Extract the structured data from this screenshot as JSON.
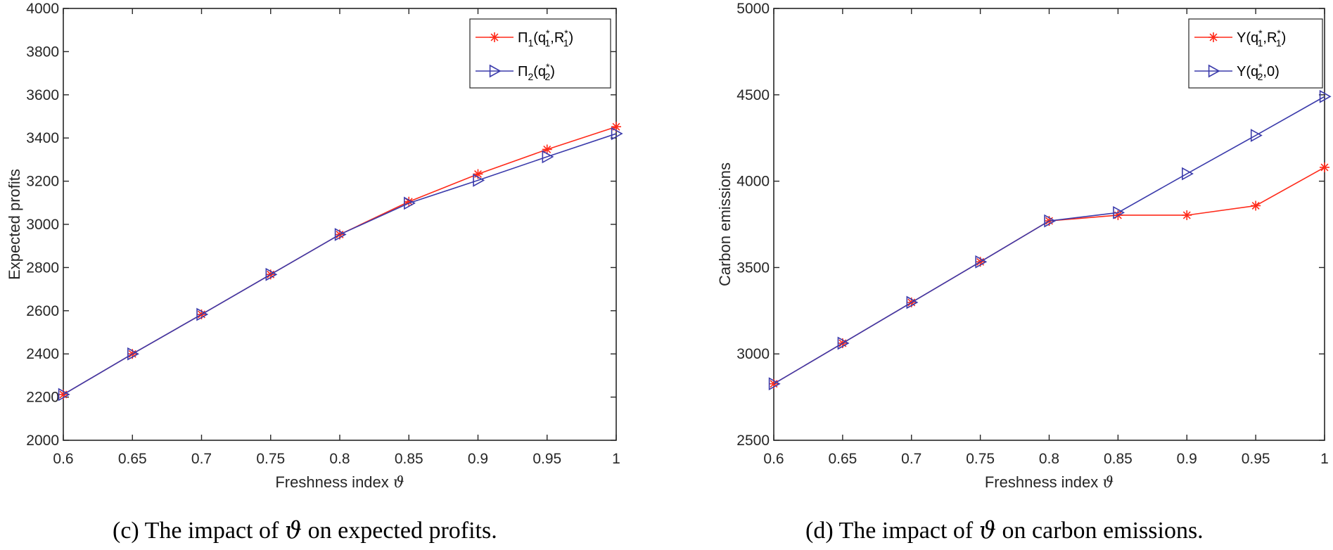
{
  "chart_data": [
    {
      "type": "line",
      "id": "c",
      "caption_prefix": "(c)",
      "caption_pre": "The impact of",
      "caption_symbol": "ϑ",
      "caption_post": "on expected profits.",
      "xlabel_text": "Freshness index",
      "xlabel_symbol": "ϑ",
      "ylabel": "Expected profits",
      "xlim": [
        0.6,
        1
      ],
      "ylim": [
        2000,
        4000
      ],
      "xticks": [
        "0.6",
        "0.65",
        "0.7",
        "0.75",
        "0.8",
        "0.85",
        "0.9",
        "0.95",
        "1"
      ],
      "yticks": [
        "2000",
        "2200",
        "2400",
        "2600",
        "2800",
        "3000",
        "3200",
        "3400",
        "3600",
        "3800",
        "4000"
      ],
      "x": [
        0.6,
        0.65,
        0.7,
        0.75,
        0.8,
        0.85,
        0.9,
        0.95,
        1
      ],
      "legend_position": "top-right",
      "series": [
        {
          "name": "Π1(q1*,R1*)",
          "legend_main": "Π",
          "legend_sub1": "1",
          "legend_arg": "(q",
          "legend_sup_star": "*",
          "legend_sub2": "1",
          "legend_rest": ",R",
          "legend_sup_star2": "*",
          "legend_sub3": "1",
          "legend_end": ")",
          "color": "#ff2a1a",
          "marker": "star",
          "values": [
            2212,
            2400,
            2583,
            2768,
            2953,
            3105,
            3233,
            3347,
            3452
          ]
        },
        {
          "name": "Π2(q2*)",
          "legend_main": "Π",
          "legend_sub1": "2",
          "legend_arg": "(q",
          "legend_sup_star": "*",
          "legend_sub2": "2",
          "legend_end": ")",
          "color": "#3b3bab",
          "marker": "triangle-right",
          "values": [
            2212,
            2400,
            2583,
            2768,
            2953,
            3098,
            3204,
            3313,
            3420
          ]
        }
      ]
    },
    {
      "type": "line",
      "id": "d",
      "caption_prefix": "(d)",
      "caption_pre": "The impact of",
      "caption_symbol": "ϑ",
      "caption_post": "on carbon emissions.",
      "xlabel_text": "Freshness index",
      "xlabel_symbol": "ϑ",
      "ylabel": "Carbon emissions",
      "xlim": [
        0.6,
        1
      ],
      "ylim": [
        2500,
        5000
      ],
      "xticks": [
        "0.6",
        "0.65",
        "0.7",
        "0.75",
        "0.8",
        "0.85",
        "0.9",
        "0.95",
        "1"
      ],
      "yticks": [
        "2500",
        "3000",
        "3500",
        "4000",
        "4500",
        "5000"
      ],
      "x": [
        0.6,
        0.65,
        0.7,
        0.75,
        0.8,
        0.85,
        0.9,
        0.95,
        1
      ],
      "legend_position": "top-right",
      "series": [
        {
          "name": "Y(q1*,R1*)",
          "legend_main": "Y",
          "legend_arg": "(q",
          "legend_sup_star": "*",
          "legend_sub2": "1",
          "legend_rest": ",R",
          "legend_sup_star2": "*",
          "legend_sub3": "1",
          "legend_end": ")",
          "color": "#ff2a1a",
          "marker": "star",
          "values": [
            2827,
            3062,
            3298,
            3533,
            3770,
            3803,
            3803,
            3858,
            4080
          ]
        },
        {
          "name": "Y(q2*,0)",
          "legend_main": "Y",
          "legend_arg": "(q",
          "legend_sup_star": "*",
          "legend_sub2": "2",
          "legend_end": ",0)",
          "color": "#3b3bab",
          "marker": "triangle-right",
          "values": [
            2827,
            3062,
            3298,
            3533,
            3770,
            3818,
            4043,
            4265,
            4490
          ]
        }
      ]
    }
  ]
}
